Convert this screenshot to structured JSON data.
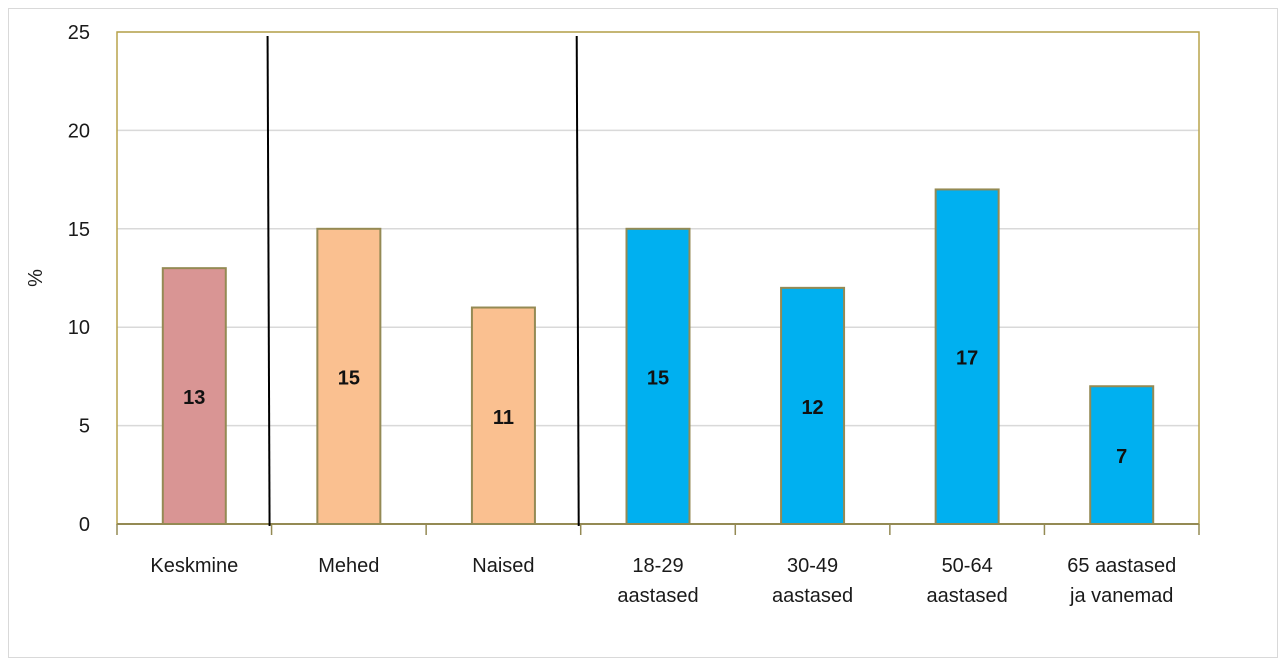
{
  "chart_data": {
    "type": "bar",
    "ylabel": "%",
    "ylim": [
      0,
      25
    ],
    "yticks": [
      0,
      5,
      10,
      15,
      20,
      25
    ],
    "grid": true,
    "categories": [
      [
        "Keskmine"
      ],
      [
        "Mehed"
      ],
      [
        "Naised"
      ],
      [
        "18-29",
        "aastased"
      ],
      [
        "30-49",
        "aastased"
      ],
      [
        "50-64",
        "aastased"
      ],
      [
        "65 aastased",
        "ja vanemad"
      ]
    ],
    "values": [
      13,
      15,
      11,
      15,
      12,
      17,
      7
    ],
    "bar_colors": [
      "#d99594",
      "#fac090",
      "#fac090",
      "#00b0f0",
      "#00b0f0",
      "#00b0f0",
      "#00b0f0"
    ],
    "group_separators_after": [
      0,
      2
    ],
    "colors": {
      "bar_border": "#948a54",
      "axis": "#948a54",
      "plot_border": "#b8a44c",
      "grid": "#d9d9d9",
      "separator": "#000000"
    }
  }
}
